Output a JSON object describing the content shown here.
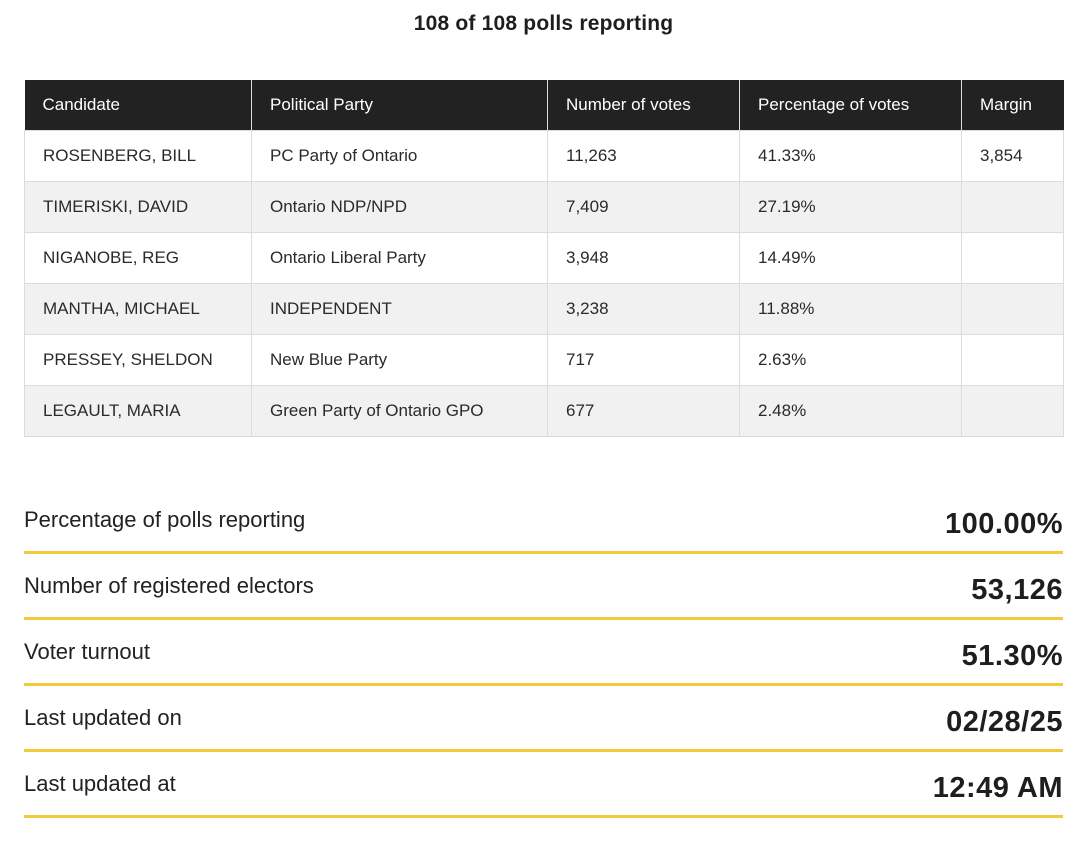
{
  "header": {
    "polls_reporting": "108 of 108 polls reporting"
  },
  "table": {
    "columns": [
      "Candidate",
      "Political Party",
      "Number of votes",
      "Percentage of votes",
      "Margin"
    ],
    "rows": [
      {
        "candidate": "ROSENBERG, BILL",
        "party": "PC Party of Ontario",
        "votes": "11,263",
        "percentage": "41.33%",
        "margin": "3,854"
      },
      {
        "candidate": "TIMERISKI, DAVID",
        "party": "Ontario NDP/NPD",
        "votes": "7,409",
        "percentage": "27.19%",
        "margin": ""
      },
      {
        "candidate": "NIGANOBE, REG",
        "party": "Ontario Liberal Party",
        "votes": "3,948",
        "percentage": "14.49%",
        "margin": ""
      },
      {
        "candidate": "MANTHA, MICHAEL",
        "party": "INDEPENDENT",
        "votes": "3,238",
        "percentage": "11.88%",
        "margin": ""
      },
      {
        "candidate": "PRESSEY, SHELDON",
        "party": "New Blue Party",
        "votes": "717",
        "percentage": "2.63%",
        "margin": ""
      },
      {
        "candidate": "LEGAULT, MARIA",
        "party": "Green Party of Ontario GPO",
        "votes": "677",
        "percentage": "2.48%",
        "margin": ""
      }
    ]
  },
  "stats": [
    {
      "label": "Percentage of polls reporting",
      "value": "100.00%"
    },
    {
      "label": "Number of registered electors",
      "value": "53,126"
    },
    {
      "label": "Voter turnout",
      "value": "51.30%"
    },
    {
      "label": "Last updated on",
      "value": "02/28/25"
    },
    {
      "label": "Last updated at",
      "value": "12:49 AM"
    }
  ],
  "colors": {
    "header_bg": "#222222",
    "accent_line": "#f2cb3d",
    "row_alt": "#f1f1f1"
  }
}
